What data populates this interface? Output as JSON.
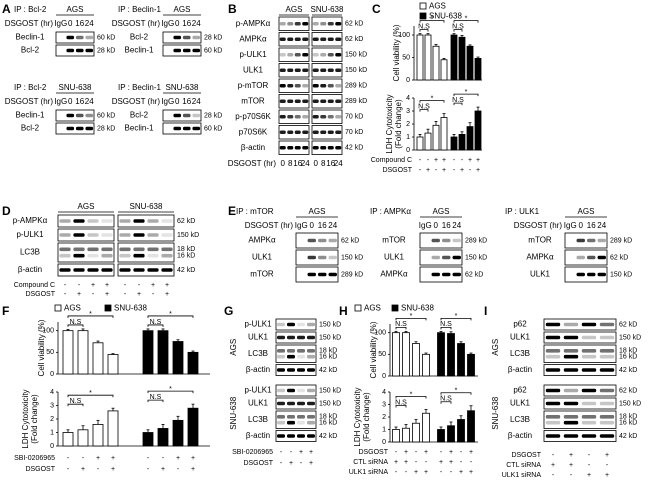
{
  "panels": {
    "A": {
      "label": "A",
      "blots": [
        {
          "ip": "IP : Bcl-2",
          "cell": "AGS",
          "treatment": "DSGOST (hr)",
          "lanes": [
            "IgG",
            "0",
            "16",
            "24"
          ],
          "rows": [
            {
              "name": "Beclin-1",
              "sizes": [
                "60 kD"
              ]
            },
            {
              "name": "Bcl-2",
              "sizes": [
                "28 kD"
              ]
            }
          ]
        },
        {
          "ip": "IP : Beclin-1",
          "cell": "AGS",
          "treatment": "DSGOST (hr)",
          "lanes": [
            "IgG",
            "0",
            "16",
            "24"
          ],
          "rows": [
            {
              "name": "Bcl-2",
              "sizes": [
                "28 kD"
              ]
            },
            {
              "name": "Beclin-1",
              "sizes": [
                "60 kD"
              ]
            }
          ]
        },
        {
          "ip": "IP : Bcl-2",
          "cell": "SNU-638",
          "treatment": "DSGOST (hr)",
          "lanes": [
            "IgG",
            "0",
            "16",
            "24"
          ],
          "rows": [
            {
              "name": "Beclin-1",
              "sizes": [
                "60 kD"
              ]
            },
            {
              "name": "Bcl-2",
              "sizes": [
                "28 kD"
              ]
            }
          ]
        },
        {
          "ip": "IP : Beclin-1",
          "cell": "SNU-638",
          "treatment": "DSGOST (hr)",
          "lanes": [
            "IgG",
            "0",
            "16",
            "24"
          ],
          "rows": [
            {
              "name": "Bcl-2",
              "sizes": [
                "28 kD"
              ]
            },
            {
              "name": "Beclin-1",
              "sizes": [
                "60 kD"
              ]
            }
          ]
        }
      ]
    },
    "B": {
      "label": "B",
      "blots": [
        {
          "groups": [
            "AGS",
            "SNU-638"
          ],
          "treatment": "DSGOST (hr)",
          "lanes": [
            "0",
            "8",
            "16",
            "24",
            "0",
            "8",
            "16",
            "24"
          ],
          "rows": [
            {
              "name": "p-AMPKα",
              "sizes": [
                "62 kD"
              ]
            },
            {
              "name": "AMPKα",
              "sizes": [
                "62 kD"
              ]
            },
            {
              "name": "p-ULK1",
              "sizes": [
                "150 kD"
              ]
            },
            {
              "name": "ULK1",
              "sizes": [
                "150 kD"
              ]
            },
            {
              "name": "p-mTOR",
              "sizes": [
                "289 kD"
              ]
            },
            {
              "name": "mTOR",
              "sizes": [
                "289 kD"
              ]
            },
            {
              "name": "p-p70S6K",
              "sizes": [
                "70 kD"
              ]
            },
            {
              "name": "p70S6K",
              "sizes": [
                "70 kD"
              ]
            },
            {
              "name": "β-actin",
              "sizes": [
                "42 kD"
              ]
            }
          ]
        }
      ]
    },
    "C": {
      "label": "C",
      "legend": [
        {
          "name": "AGS",
          "color": "#ffffff"
        },
        {
          "name": "SNU-638",
          "color": "#000000"
        }
      ],
      "charts": [
        {
          "type": "bar",
          "ylabel": [
            "Cell viability (%)"
          ],
          "ylim": [
            0,
            120
          ],
          "yticks": [
            0,
            50,
            100
          ],
          "series": [
            {
              "values": [
                100,
                100,
                75,
                45
              ],
              "errors": [
                3,
                3,
                4,
                3
              ]
            },
            {
              "values": [
                100,
                95,
                75,
                48
              ],
              "errors": [
                3,
                4,
                3,
                3
              ]
            }
          ],
          "annotations": [
            [
              "*",
              "N.S"
            ],
            [
              "*",
              "N.S"
            ]
          ]
        },
        {
          "type": "bar",
          "ylabel": [
            "LDH Cytotoxicity",
            "(Fold change)"
          ],
          "ylim": [
            0,
            4
          ],
          "yticks": [
            0,
            1,
            2,
            3,
            4
          ],
          "series": [
            {
              "values": [
                1,
                1.3,
                1.9,
                2.5
              ],
              "errors": [
                0.2,
                0.3,
                0.3,
                0.3
              ]
            },
            {
              "values": [
                1,
                1.2,
                1.8,
                3
              ],
              "errors": [
                0.2,
                0.2,
                0.3,
                0.3
              ]
            }
          ],
          "annotations": [
            [
              "*",
              "N.S"
            ],
            [
              "*",
              "N.S"
            ]
          ]
        }
      ],
      "conditions": [
        {
          "name": "Compound C",
          "signs": [
            "-",
            "-",
            "+",
            "+",
            "-",
            "-",
            "+",
            "+"
          ]
        },
        {
          "name": "DSGOST",
          "signs": [
            "-",
            "+",
            "-",
            "+",
            "-",
            "+",
            "-",
            "+"
          ]
        }
      ]
    },
    "D": {
      "label": "D",
      "blots": [
        {
          "groups": [
            "AGS",
            "SNU-638"
          ],
          "rows": [
            {
              "name": "p-AMPKα",
              "sizes": [
                "62 kD"
              ]
            },
            {
              "name": "p-ULK1",
              "sizes": [
                "150 kD"
              ]
            },
            {
              "name": "LC3B",
              "sizes": [
                "18 kD",
                "16 kD"
              ]
            },
            {
              "name": "β-actin",
              "sizes": [
                "42 kD"
              ]
            }
          ]
        }
      ],
      "conditions": [
        {
          "name": "Compound C",
          "signs": [
            "-",
            "-",
            "+",
            "+",
            "-",
            "-",
            "+",
            "+"
          ]
        },
        {
          "name": "DSGOST",
          "signs": [
            "-",
            "+",
            "-",
            "+",
            "-",
            "+",
            "-",
            "+"
          ]
        }
      ]
    },
    "E": {
      "label": "E",
      "blots": [
        {
          "ip": "IP : mTOR",
          "cell": "AGS",
          "treatment": "DSGOST (hr)",
          "lanes": [
            "IgG",
            "0",
            "16",
            "24"
          ],
          "rows": [
            {
              "name": "AMPKα",
              "sizes": [
                "62 kD"
              ]
            },
            {
              "name": "ULK1",
              "sizes": [
                "150 kD"
              ]
            },
            {
              "name": "mTOR",
              "sizes": [
                "289 kD"
              ]
            }
          ]
        },
        {
          "ip": "IP : AMPKα",
          "cell": "AGS",
          "lanes": [
            "IgG",
            "0",
            "16",
            "24"
          ],
          "rows": [
            {
              "name": "mTOR",
              "sizes": [
                "289 kD"
              ]
            },
            {
              "name": "ULK1",
              "sizes": [
                "150 kD"
              ]
            },
            {
              "name": "AMPKα",
              "sizes": [
                "62 kD"
              ]
            }
          ]
        },
        {
          "ip": "IP : ULK1",
          "cell": "AGS",
          "treatment": "DSGOST (hr)",
          "lanes": [
            "IgG",
            "0",
            "16",
            "24"
          ],
          "rows": [
            {
              "name": "mTOR",
              "sizes": [
                "289 kD"
              ]
            },
            {
              "name": "AMPKα",
              "sizes": [
                "62 kD"
              ]
            },
            {
              "name": "ULK1",
              "sizes": [
                "150 kD"
              ]
            }
          ]
        }
      ]
    },
    "F": {
      "label": "F",
      "legend": [
        {
          "name": "AGS",
          "color": "#ffffff"
        },
        {
          "name": "SNU-638",
          "color": "#000000"
        }
      ],
      "charts": [
        {
          "type": "bar",
          "ylabel": [
            "Cell viability (%)"
          ],
          "ylim": [
            0,
            120
          ],
          "yticks": [
            0,
            50,
            100
          ],
          "series": [
            {
              "values": [
                100,
                100,
                72,
                45
              ],
              "errors": [
                3,
                4,
                4,
                2
              ]
            },
            {
              "values": [
                100,
                100,
                75,
                50
              ],
              "errors": [
                4,
                4,
                4,
                3
              ]
            }
          ],
          "annotations": [
            [
              "*",
              "N.S"
            ],
            [
              "*",
              "N.S"
            ]
          ]
        },
        {
          "type": "bar",
          "ylabel": [
            "LDH Cytotoxicity",
            "(Fold change)"
          ],
          "ylim": [
            0,
            4
          ],
          "yticks": [
            0,
            1,
            2,
            3,
            4
          ],
          "series": [
            {
              "values": [
                1,
                1.2,
                1.6,
                2.6
              ],
              "errors": [
                0.2,
                0.3,
                0.3,
                0.2
              ]
            },
            {
              "values": [
                1,
                1.3,
                1.9,
                2.8
              ],
              "errors": [
                0.2,
                0.3,
                0.3,
                0.3
              ]
            }
          ],
          "annotations": [
            [
              "*",
              "N.S"
            ],
            [
              "*",
              "N.S"
            ]
          ]
        }
      ],
      "conditions": [
        {
          "name": "SBI-0206965",
          "signs": [
            "-",
            "-",
            "+",
            "+",
            "-",
            "-",
            "+",
            "+"
          ]
        },
        {
          "name": "DSGOST",
          "signs": [
            "-",
            "+",
            "-",
            "+",
            "-",
            "+",
            "-",
            "+"
          ]
        }
      ]
    },
    "G": {
      "label": "G",
      "blots": [
        {
          "cell": "AGS",
          "rows": [
            {
              "name": "p-ULK1",
              "sizes": [
                "150 kD"
              ]
            },
            {
              "name": "ULK1",
              "sizes": [
                "150 kD"
              ]
            },
            {
              "name": "LC3B",
              "sizes": [
                "18 kD",
                "16 kD"
              ]
            },
            {
              "name": "β-actin",
              "sizes": [
                "42 kD"
              ]
            }
          ]
        },
        {
          "cell": "SNU-638",
          "rows": [
            {
              "name": "p-ULK1",
              "sizes": [
                "150 kD"
              ]
            },
            {
              "name": "ULK1",
              "sizes": [
                "150 kD"
              ]
            },
            {
              "name": "LC3B",
              "sizes": [
                "18 kD",
                "16 kD"
              ]
            },
            {
              "name": "β-actin",
              "sizes": [
                "42 kD"
              ]
            }
          ]
        }
      ],
      "conditions": [
        {
          "name": "SBI-0206965",
          "signs": [
            "-",
            "-",
            "+",
            "+"
          ]
        },
        {
          "name": "DSGOST",
          "signs": [
            "-",
            "+",
            "-",
            "+"
          ]
        }
      ]
    },
    "H": {
      "label": "H",
      "legend": [
        {
          "name": "AGS",
          "color": "#ffffff"
        },
        {
          "name": "SNU-638",
          "color": "#000000"
        }
      ],
      "charts": [
        {
          "type": "bar",
          "ylabel": [
            "Cell viability (%)"
          ],
          "ylim": [
            0,
            120
          ],
          "yticks": [
            0,
            50,
            100
          ],
          "series": [
            {
              "values": [
                100,
                100,
                75,
                50
              ],
              "errors": [
                3,
                3,
                4,
                3
              ]
            },
            {
              "values": [
                100,
                98,
                75,
                50
              ],
              "errors": [
                3,
                4,
                4,
                3
              ]
            }
          ],
          "annotations": [
            [
              "*",
              "N.S"
            ],
            [
              "*",
              "N.S"
            ]
          ]
        },
        {
          "type": "bar",
          "ylabel": [
            "LDH Cytotoxicity",
            "(Fold change)"
          ],
          "ylim": [
            0,
            4
          ],
          "yticks": [
            0,
            1,
            2,
            3,
            4
          ],
          "series": [
            {
              "values": [
                1,
                1.1,
                1.5,
                2.3
              ],
              "errors": [
                0.2,
                0.3,
                0.3,
                0.3
              ]
            },
            {
              "values": [
                1,
                1.3,
                1.8,
                2.5
              ],
              "errors": [
                0.2,
                0.3,
                0.3,
                0.4
              ]
            }
          ],
          "annotations": [
            [
              "*",
              "N.S"
            ],
            [
              "*",
              "N.S"
            ]
          ]
        }
      ],
      "conditions": [
        {
          "name": "DSGOST",
          "signs": [
            "-",
            "+",
            "-",
            "+",
            "-",
            "+",
            "-",
            "+"
          ]
        },
        {
          "name": "CTL siRNA",
          "signs": [
            "+",
            "+",
            "-",
            "-",
            "+",
            "+",
            "-",
            "-"
          ]
        },
        {
          "name": "ULK1 siRNA",
          "signs": [
            "-",
            "-",
            "+",
            "+",
            "-",
            "-",
            "+",
            "+"
          ]
        }
      ]
    },
    "I": {
      "label": "I",
      "blots": [
        {
          "cell": "AGS",
          "rows": [
            {
              "name": "p62",
              "sizes": [
                "62 kD"
              ]
            },
            {
              "name": "ULK1",
              "sizes": [
                "150 kD"
              ]
            },
            {
              "name": "LC3B",
              "sizes": [
                "18 kD",
                "16 kD"
              ]
            },
            {
              "name": "β-actin",
              "sizes": [
                "42 kD"
              ]
            }
          ]
        },
        {
          "cell": "SNU-638",
          "rows": [
            {
              "name": "p62",
              "sizes": [
                "62 kD"
              ]
            },
            {
              "name": "ULK1",
              "sizes": [
                "150 kD"
              ]
            },
            {
              "name": "LC3B",
              "sizes": [
                "18 kD",
                "16 kD"
              ]
            },
            {
              "name": "β-actin",
              "sizes": [
                "42 kD"
              ]
            }
          ]
        }
      ],
      "conditions": [
        {
          "name": "DSGOST",
          "signs": [
            "-",
            "+",
            "-",
            "+"
          ]
        },
        {
          "name": "CTL siRNA",
          "signs": [
            "+",
            "+",
            "-",
            "-"
          ]
        },
        {
          "name": "ULK1 siRNA",
          "signs": [
            "-",
            "-",
            "+",
            "+"
          ]
        }
      ]
    }
  }
}
